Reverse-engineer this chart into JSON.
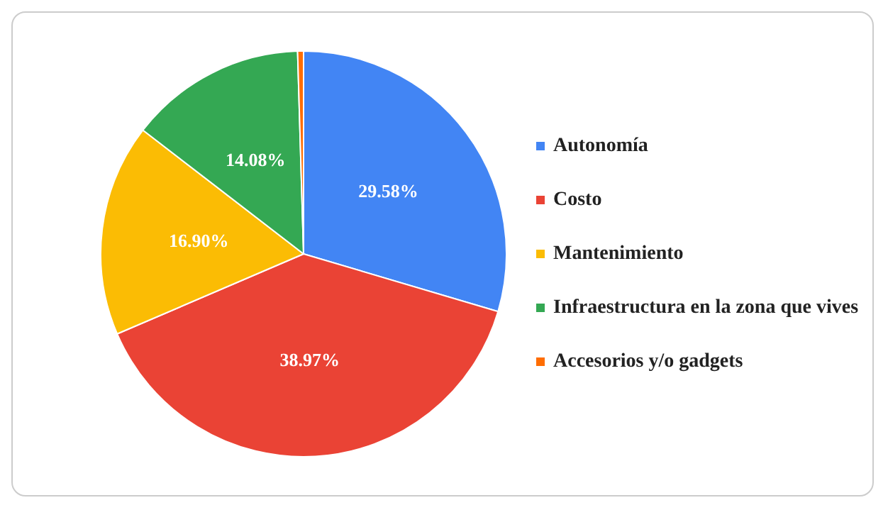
{
  "chart_data": {
    "type": "pie",
    "categories": [
      "Autonomía",
      "Costo",
      "Mantenimiento",
      "Infraestructura en la zona que vives",
      "Accesorios y/o gadgets"
    ],
    "values": [
      29.58,
      38.97,
      16.9,
      14.08,
      0.47
    ],
    "colors": [
      "#4285f4",
      "#ea4335",
      "#fbbc04",
      "#34a853",
      "#ff6d01"
    ],
    "value_labels": [
      "29.58%",
      "38.97%",
      "16.90%",
      "14.08%",
      null
    ],
    "legend": "right"
  }
}
